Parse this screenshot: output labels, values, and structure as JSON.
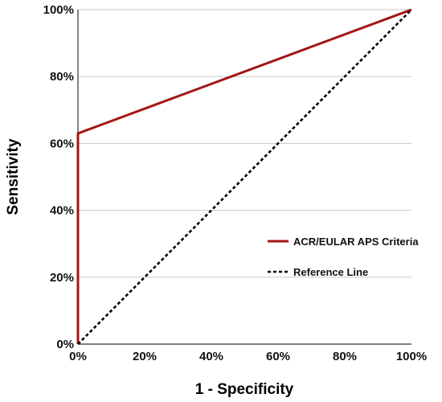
{
  "chart_data": {
    "type": "line",
    "xlabel": "1 - Specificity",
    "ylabel": "Sensitivity",
    "x_ticks": [
      0,
      20,
      40,
      60,
      80,
      100
    ],
    "y_ticks": [
      0,
      20,
      40,
      60,
      80,
      100
    ],
    "x_tick_labels": [
      "0%",
      "20%",
      "40%",
      "60%",
      "80%",
      "100%"
    ],
    "y_tick_labels": [
      "0%",
      "20%",
      "40%",
      "60%",
      "80%",
      "100%"
    ],
    "xlim": [
      0,
      100
    ],
    "ylim": [
      0,
      100
    ],
    "grid": "horizontal",
    "legend_position": "right",
    "series": [
      {
        "name": "ACR/EULAR APS Criteria",
        "x": [
          0,
          0,
          100
        ],
        "y": [
          0,
          63,
          100
        ],
        "color": "#a31515",
        "style": "solid"
      },
      {
        "name": "Reference Line",
        "x": [
          0,
          100
        ],
        "y": [
          0,
          100
        ],
        "color": "#000000",
        "style": "dotted"
      }
    ]
  }
}
